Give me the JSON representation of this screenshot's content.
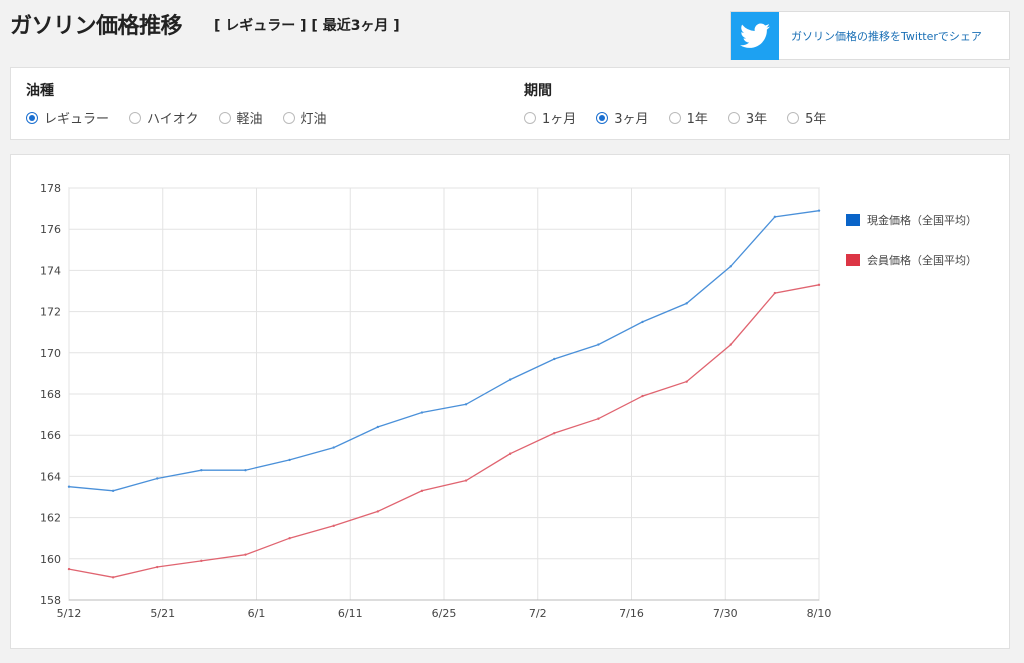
{
  "header": {
    "title": "ガソリン価格推移",
    "subtitle": "[ レギュラー ] [ 最近3ヶ月 ]"
  },
  "share": {
    "icon": "twitter-bird-icon",
    "label": "ガソリン価格の推移をTwitterでシェア",
    "color": "#1da1f2"
  },
  "filters": {
    "fuel": {
      "title": "油種",
      "options": [
        "レギュラー",
        "ハイオク",
        "軽油",
        "灯油"
      ],
      "selected": "レギュラー"
    },
    "period": {
      "title": "期間",
      "options": [
        "1ヶ月",
        "3ヶ月",
        "1年",
        "3年",
        "5年"
      ],
      "selected": "3ヶ月"
    }
  },
  "chart_data": {
    "type": "line",
    "title": "",
    "xlabel": "",
    "ylabel": "",
    "x_ticks": [
      "5/12",
      "5/21",
      "6/1",
      "6/11",
      "6/25",
      "7/2",
      "7/16",
      "7/30",
      "8/10"
    ],
    "x_points": 18,
    "ylim": [
      158,
      178
    ],
    "yticks": [
      158,
      160,
      162,
      164,
      166,
      168,
      170,
      172,
      174,
      176,
      178
    ],
    "grid": true,
    "legend_position": "right",
    "series": [
      {
        "name": "現金価格（全国平均）",
        "color": "#4a90d9",
        "legend_color": "#0a64c8",
        "values": [
          163.5,
          163.3,
          163.9,
          164.3,
          164.3,
          164.8,
          165.4,
          166.4,
          167.1,
          167.5,
          168.7,
          169.7,
          170.4,
          171.5,
          172.4,
          174.2,
          176.6,
          176.9
        ]
      },
      {
        "name": "会員価格（全国平均）",
        "color": "#e06470",
        "legend_color": "#dc3545",
        "values": [
          159.5,
          159.1,
          159.6,
          159.9,
          160.2,
          161.0,
          161.6,
          162.3,
          163.3,
          163.8,
          165.1,
          166.1,
          166.8,
          167.9,
          168.6,
          170.4,
          172.9,
          173.3
        ]
      }
    ]
  }
}
